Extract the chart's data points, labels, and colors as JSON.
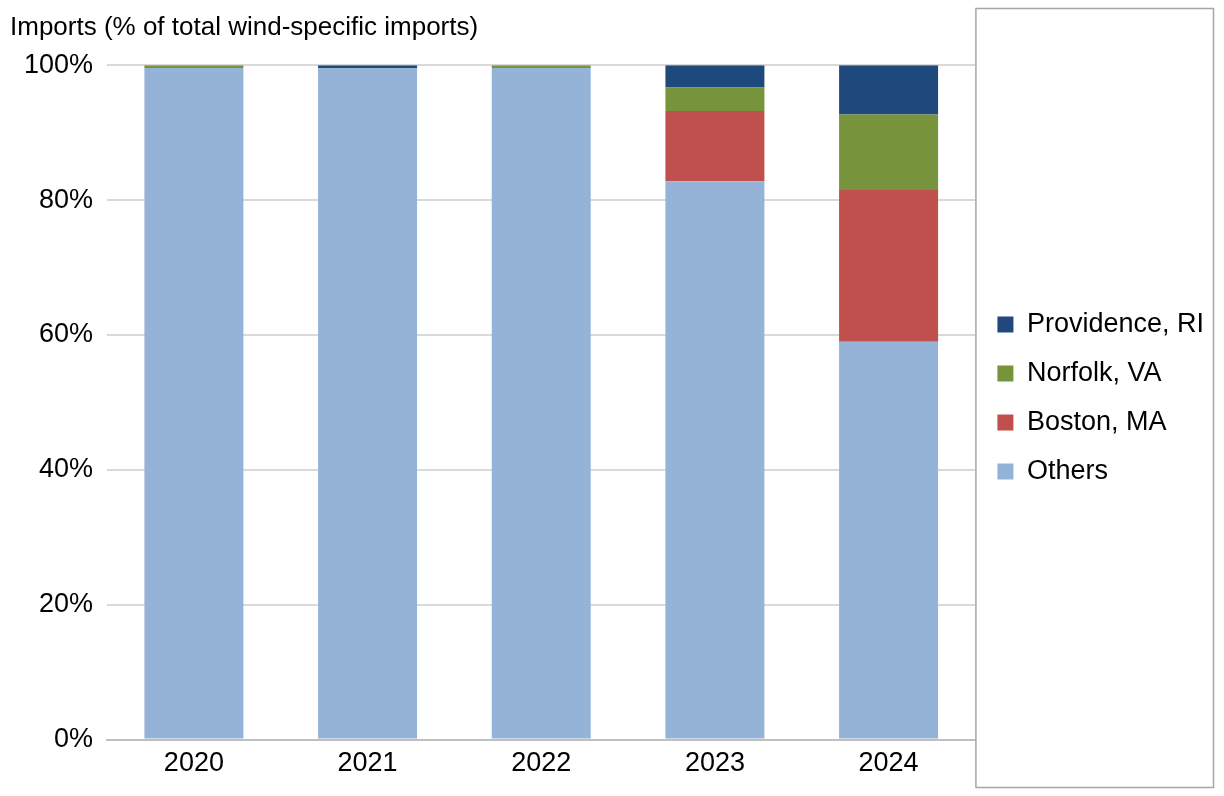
{
  "chart_data": {
    "type": "bar",
    "ylabel": "Imports (% of total wind-specific imports)",
    "categories": [
      "2020",
      "2021",
      "2022",
      "2023",
      "2024"
    ],
    "stacked": true,
    "series": [
      {
        "name": "Others",
        "color": "#95b3d7",
        "values": [
          99.6,
          99.6,
          99.6,
          82.8,
          59
        ]
      },
      {
        "name": "Boston, MA",
        "color": "#c0504d",
        "values": [
          0,
          0,
          0,
          10.4,
          22.5
        ]
      },
      {
        "name": "Norfolk, VA",
        "color": "#77933c",
        "values": [
          0.4,
          0,
          0.4,
          3.5,
          11.2
        ]
      },
      {
        "name": "Providence, RI",
        "color": "#1f497d",
        "values": [
          0,
          0.4,
          0,
          3.3,
          7.3
        ]
      }
    ],
    "ylim": [
      0,
      100
    ],
    "yticks": [
      {
        "value": 0,
        "label": "0%"
      },
      {
        "value": 20,
        "label": "20%"
      },
      {
        "value": 40,
        "label": "40%"
      },
      {
        "value": 60,
        "label": "60%"
      },
      {
        "value": 80,
        "label": "80%"
      },
      {
        "value": 100,
        "label": "100%"
      }
    ],
    "grid": "y",
    "legend": "right"
  }
}
